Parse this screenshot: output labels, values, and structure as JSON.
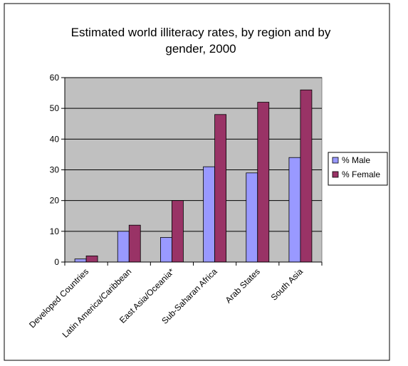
{
  "chart_data": {
    "type": "bar",
    "title_lines": [
      "Estimated world illiteracy rates, by region and by",
      "gender, 2000"
    ],
    "categories": [
      "Developed Countries",
      "Latin America/Caribbean",
      "East Asia/Oceania*",
      "Sub-Saharan Africa",
      "Arab States",
      "South Asia"
    ],
    "series": [
      {
        "name": "% Male",
        "values": [
          1,
          10,
          8,
          31,
          29,
          34
        ],
        "color": "#9999ff"
      },
      {
        "name": "% Female",
        "values": [
          2,
          12,
          20,
          48,
          52,
          56
        ],
        "color": "#993366"
      }
    ],
    "ylim": [
      0,
      60
    ],
    "yticks": [
      0,
      10,
      20,
      30,
      40,
      50,
      60
    ],
    "grid": true,
    "legend_position": "right",
    "plot_background": "#c0c0c0"
  }
}
